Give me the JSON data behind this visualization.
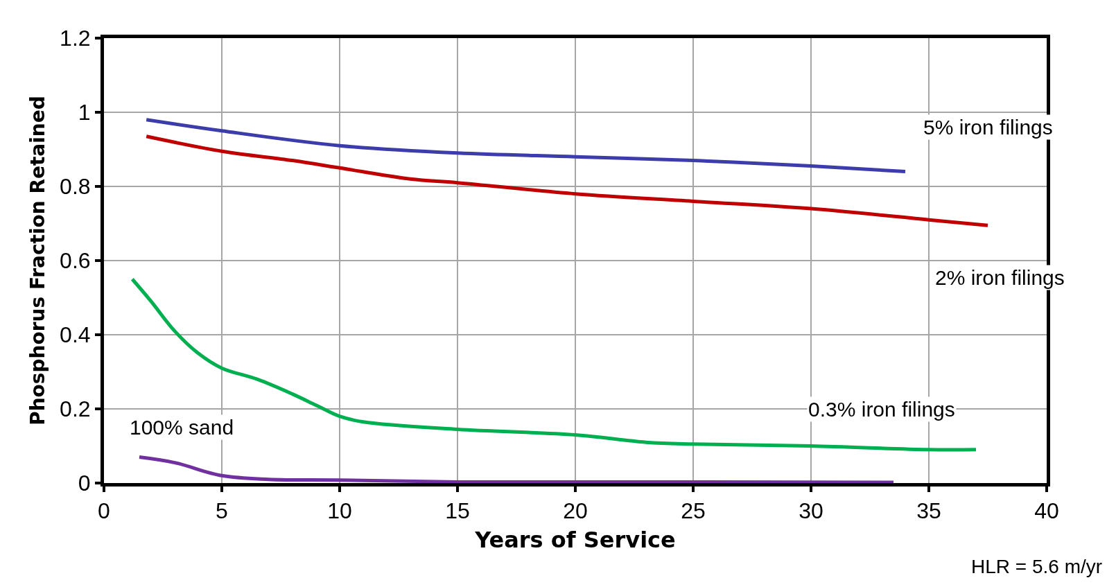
{
  "chart_data": {
    "type": "line",
    "xlabel": "Years of Service",
    "ylabel": "Phosphorus Fraction Retained",
    "xlim": [
      0,
      40
    ],
    "xticks": [
      0,
      5,
      10,
      15,
      20,
      25,
      30,
      35,
      40
    ],
    "ylim": [
      0,
      1.2
    ],
    "yticks": [
      0,
      0.2,
      0.4,
      0.6,
      0.8,
      1,
      1.2
    ],
    "grid": true,
    "legend": false,
    "marker": "none",
    "line_style": "solid",
    "annotations": [
      "HLR = 5.6 m/yr"
    ],
    "series": [
      {
        "name": "5% iron filings",
        "color": "#3c3caa",
        "x": [
          1.8,
          5,
          10,
          15,
          20,
          25,
          30,
          34
        ],
        "values": [
          0.98,
          0.95,
          0.91,
          0.89,
          0.88,
          0.87,
          0.855,
          0.84
        ]
      },
      {
        "name": "2% iron filings",
        "color": "#c00000",
        "x": [
          1.8,
          5,
          8,
          10,
          13,
          15,
          20,
          25,
          30,
          35,
          37.5
        ],
        "values": [
          0.935,
          0.895,
          0.87,
          0.85,
          0.82,
          0.81,
          0.78,
          0.76,
          0.74,
          0.71,
          0.695
        ]
      },
      {
        "name": "0.3% iron filings",
        "color": "#00b050",
        "x": [
          1.2,
          2,
          3,
          4,
          5,
          6.5,
          8,
          9,
          10,
          11,
          15,
          20,
          23,
          25,
          30,
          35,
          37
        ],
        "values": [
          0.55,
          0.49,
          0.41,
          0.35,
          0.31,
          0.28,
          0.24,
          0.21,
          0.18,
          0.165,
          0.145,
          0.13,
          0.11,
          0.105,
          0.1,
          0.09,
          0.09
        ]
      },
      {
        "name": "100% sand",
        "color": "#7030a0",
        "x": [
          1.5,
          3,
          5,
          7,
          10,
          15,
          25,
          33.5
        ],
        "values": [
          0.07,
          0.055,
          0.02,
          0.01,
          0.008,
          0.003,
          0.003,
          0.002
        ]
      }
    ]
  }
}
